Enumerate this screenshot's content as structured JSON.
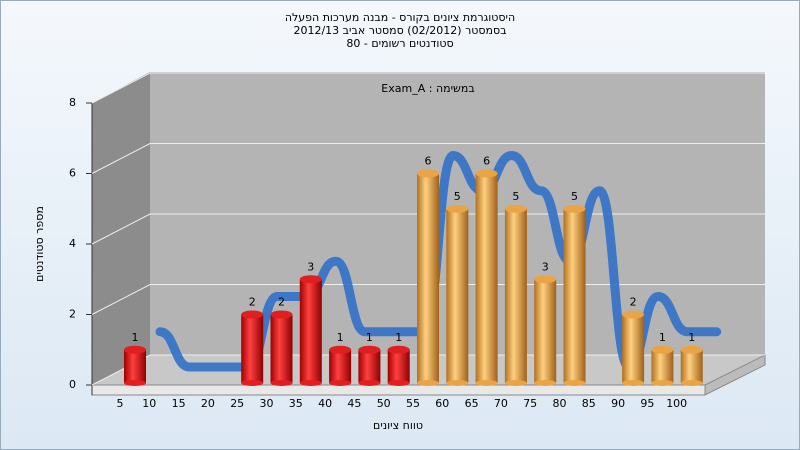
{
  "chart_data": {
    "type": "bar",
    "title": [
      "היסטוגרמת ציונים בקורס - מבנה מערכות הפעלה",
      "בסמסטר  (02/2012)  סמסטר אביב 2012/13",
      "סטודנטים רשומים - 80"
    ],
    "annotation": "Exam_A : במשימה",
    "xlabel": "טווח ציונים",
    "ylabel": "מספר סטודנטים",
    "categories": [
      "5",
      "10",
      "15",
      "20",
      "25",
      "30",
      "35",
      "40",
      "45",
      "50",
      "55",
      "60",
      "65",
      "70",
      "75",
      "80",
      "85",
      "90",
      "95",
      "100"
    ],
    "values": [
      1,
      0,
      0,
      0,
      2,
      2,
      3,
      1,
      1,
      1,
      6,
      5,
      6,
      5,
      3,
      5,
      0,
      2,
      1,
      1
    ],
    "colors": [
      "#e02020",
      "#e02020",
      "#e02020",
      "#e02020",
      "#e02020",
      "#e02020",
      "#e02020",
      "#e02020",
      "#e02020",
      "#e02020",
      "#e8a445",
      "#e8a445",
      "#e8a445",
      "#e8a445",
      "#e8a445",
      "#e8a445",
      "#e8a445",
      "#e8a445",
      "#e8a445",
      "#e8a445"
    ],
    "ylim": [
      0,
      8
    ],
    "yticks": [
      0,
      2,
      4,
      6,
      8
    ],
    "grid": true
  }
}
